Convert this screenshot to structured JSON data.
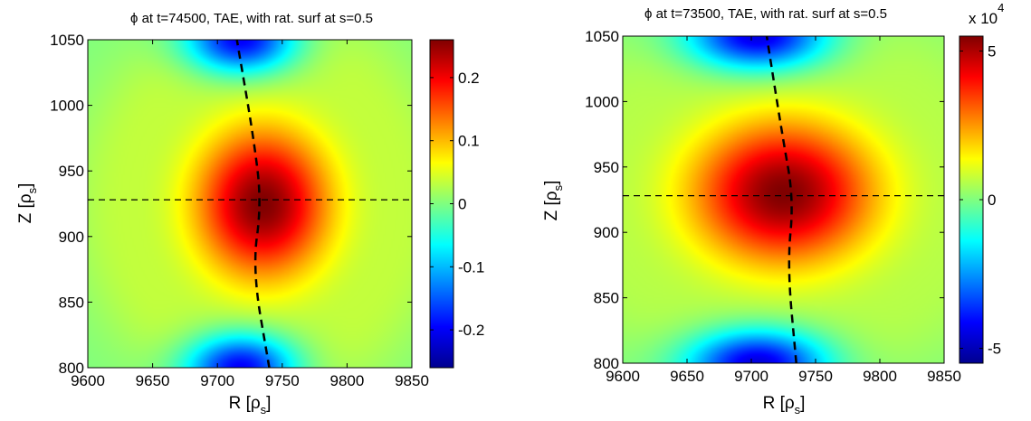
{
  "chart_data": [
    {
      "type": "heatmap",
      "title": "ϕ at t=74500, TAE, with rat. surf at s=0.5",
      "xlabel": {
        "main": "R [ρ",
        "sub": "s",
        "close": "]"
      },
      "ylabel": {
        "main": "Z [ρ",
        "sub": "s",
        "close": "]"
      },
      "xlim": [
        9600,
        9850
      ],
      "ylim": [
        800,
        1050
      ],
      "x_ticks": [
        9600,
        9650,
        9700,
        9750,
        9800,
        9850
      ],
      "y_ticks": [
        800,
        850,
        900,
        950,
        1000,
        1050
      ],
      "colorbar": {
        "min": -0.26,
        "max": 0.26,
        "ticks": [
          -0.2,
          -0.1,
          0,
          0.1,
          0.2
        ],
        "tick_labels": [
          "-0.2",
          "-0.1",
          "0",
          "0.1",
          "0.2"
        ],
        "exponent": ""
      },
      "field": {
        "blobs": [
          {
            "center": [
              9735,
              925
            ],
            "sigma": [
              38,
              42
            ],
            "amplitude": 0.26
          },
          {
            "center": [
              9718,
              1050
            ],
            "sigma": [
              30,
              18
            ],
            "amplitude": -0.23
          },
          {
            "center": [
              9718,
              800
            ],
            "sigma": [
              30,
              18
            ],
            "amplitude": -0.23
          }
        ],
        "ring_amplitude": 0.03
      },
      "horizontal_line": {
        "y": 928
      },
      "rational_surface": [
        [
          9740,
          800
        ],
        [
          9727,
          875
        ],
        [
          9734,
          925
        ],
        [
          9728,
          975
        ],
        [
          9715,
          1050
        ]
      ]
    },
    {
      "type": "heatmap",
      "title": "ϕ at t=73500, TAE, with rat. surf at s=0.5",
      "xlabel": {
        "main": "R [ρ",
        "sub": "s",
        "close": "]"
      },
      "ylabel": {
        "main": "Z [ρ",
        "sub": "s",
        "close": "]"
      },
      "xlim": [
        9600,
        9850
      ],
      "ylim": [
        800,
        1050
      ],
      "x_ticks": [
        9600,
        9650,
        9700,
        9750,
        9800,
        9850
      ],
      "y_ticks": [
        800,
        850,
        900,
        950,
        1000,
        1050
      ],
      "colorbar": {
        "min": -55000,
        "max": 55000,
        "ticks": [
          -50000,
          0,
          50000
        ],
        "tick_labels": [
          "-5",
          "0",
          "5"
        ],
        "exponent": "x 10",
        "exponent_power": "4"
      },
      "field": {
        "blobs": [
          {
            "center": [
              9725,
              930
            ],
            "sigma": [
              52,
              40
            ],
            "amplitude": 55000
          },
          {
            "center": [
              9705,
              1050
            ],
            "sigma": [
              38,
              18
            ],
            "amplitude": -50000
          },
          {
            "center": [
              9705,
              800
            ],
            "sigma": [
              38,
              18
            ],
            "amplitude": -50000
          }
        ],
        "ring_amplitude": 5000
      },
      "horizontal_line": {
        "y": 928
      },
      "rational_surface": [
        [
          9735,
          800
        ],
        [
          9728,
          875
        ],
        [
          9733,
          925
        ],
        [
          9724,
          975
        ],
        [
          9712,
          1050
        ]
      ]
    }
  ]
}
